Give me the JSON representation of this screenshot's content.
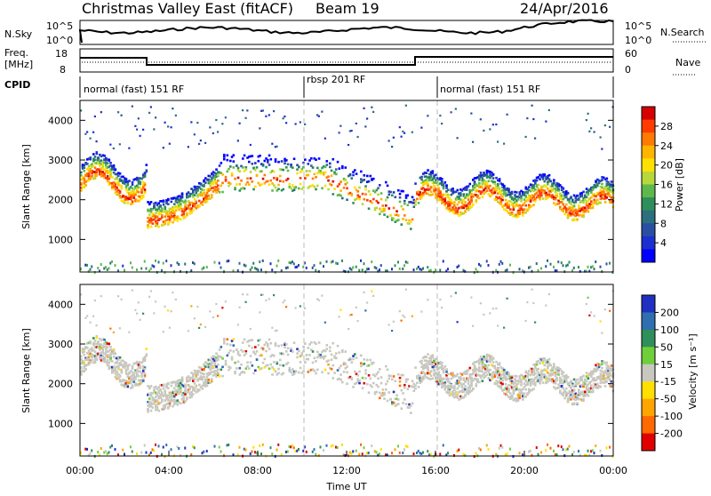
{
  "header": {
    "title": "Christmas Valley East (fitACF)",
    "beam": "Beam 19",
    "date": "24/Apr/2016"
  },
  "strip": {
    "nsky_label": "N.Sky",
    "nsearch_label": "N.Search",
    "nsky_ticks": [
      "10^5",
      "10^0"
    ],
    "nsearch_ticks": [
      "10^5",
      "10^0"
    ],
    "freq_label_1": "Freq.",
    "freq_label_2": "[MHz]",
    "freq_ticks": [
      "18",
      "8"
    ],
    "nave_label": "Nave",
    "nave_ticks": [
      "60",
      "0"
    ],
    "cpid_label": "CPID",
    "cpid_segments": [
      {
        "label": "normal (fast) 151 RF",
        "start": 0,
        "end": 10
      },
      {
        "label": "rbsp 201 RF",
        "start": 10,
        "end": 16
      },
      {
        "label": "normal (fast) 151 RF",
        "start": 16,
        "end": 24
      }
    ]
  },
  "chart_data": [
    {
      "type": "heatmap",
      "title": "",
      "ylabel": "Slant Range [km]",
      "xlabel": "",
      "xlim": [
        0,
        24
      ],
      "ylim": [
        180,
        4500
      ],
      "yticks": [
        "1000",
        "2000",
        "3000",
        "4000"
      ],
      "colorbar_label": "Power [dB]",
      "colorbar_ticks": [
        "28",
        "24",
        "20",
        "16",
        "12",
        "8",
        "4"
      ],
      "colorbar_colors": [
        "#d60000",
        "#ff3b00",
        "#ff7a00",
        "#ffb400",
        "#ffe000",
        "#b6d83a",
        "#5fb84b",
        "#2f8f5a",
        "#2c6f7e",
        "#2a4fa0",
        "#1c2fd0",
        "#0000ff"
      ],
      "scatter_bands": [
        {
          "t0": 0.0,
          "t1": 2.9,
          "r_lo": 2100,
          "r_hi": 2900,
          "peak": 26
        },
        {
          "t0": 3.0,
          "t1": 6.2,
          "r_lo": 1400,
          "r_hi": 2600,
          "peak": 24
        },
        {
          "t0": 15.2,
          "t1": 24.0,
          "r_lo": 1700,
          "r_hi": 2700,
          "peak": 22
        }
      ],
      "reference_lines_ut": [
        10,
        16
      ]
    },
    {
      "type": "heatmap",
      "title": "",
      "ylabel": "Slant Range [km]",
      "xlabel": "Time UT",
      "xlim": [
        0,
        24
      ],
      "ylim": [
        180,
        4500
      ],
      "yticks": [
        "1000",
        "2000",
        "3000",
        "4000"
      ],
      "xticks": [
        "00:00",
        "04:00",
        "08:00",
        "12:00",
        "16:00",
        "20:00",
        "00:00"
      ],
      "colorbar_label": "Velocity [m s⁻¹]",
      "colorbar_ticks": [
        "200",
        "100",
        "50",
        "15",
        "-15",
        "-50",
        "-100",
        "-200"
      ],
      "colorbar_colors": [
        "#2030c0",
        "#2e6fb0",
        "#2f8f5a",
        "#6fcf3a",
        "#c8c8c0",
        "#ffe000",
        "#ffa500",
        "#ff6a00",
        "#e00000"
      ],
      "reference_lines_ut": [
        10,
        16
      ]
    }
  ]
}
